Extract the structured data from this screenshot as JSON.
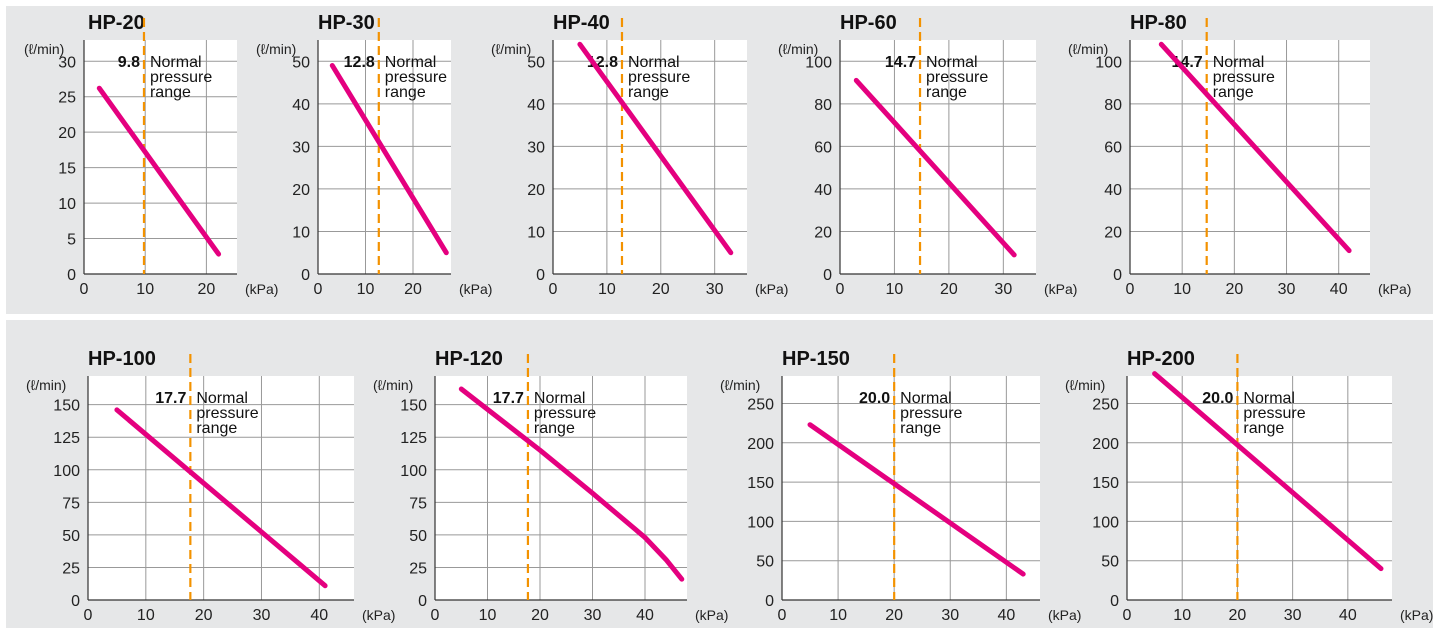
{
  "chart_data": [
    {
      "type": "line",
      "title": "HP-20",
      "ylabel": "(ℓ/min)",
      "xlabel": "(kPa)",
      "xticks": [
        0,
        10,
        20
      ],
      "yticks": [
        0,
        5,
        10,
        15,
        20,
        25,
        30
      ],
      "xlim": [
        0,
        25
      ],
      "ylim": [
        0,
        33
      ],
      "series": [
        {
          "x": [
            2.5,
            22
          ],
          "y": [
            26.2,
            2.8
          ]
        }
      ],
      "normal_pressure": 9.8,
      "normal_pressure_label": "9.8",
      "annotation": [
        "Normal",
        "pressure",
        "range"
      ]
    },
    {
      "type": "line",
      "title": "HP-30",
      "ylabel": "(ℓ/min)",
      "xlabel": "(kPa)",
      "xticks": [
        0,
        10,
        20
      ],
      "yticks": [
        0,
        10,
        20,
        30,
        40,
        50
      ],
      "xlim": [
        0,
        28
      ],
      "ylim": [
        0,
        55
      ],
      "series": [
        {
          "x": [
            3,
            27
          ],
          "y": [
            49,
            5
          ]
        }
      ],
      "normal_pressure": 12.8,
      "normal_pressure_label": "12.8",
      "annotation": [
        "Normal",
        "pressure",
        "range"
      ]
    },
    {
      "type": "line",
      "title": "HP-40",
      "ylabel": "(ℓ/min)",
      "xlabel": "(kPa)",
      "xticks": [
        0,
        10,
        20,
        30
      ],
      "yticks": [
        0,
        10,
        20,
        30,
        40,
        50
      ],
      "xlim": [
        0,
        36
      ],
      "ylim": [
        0,
        55
      ],
      "series": [
        {
          "x": [
            5,
            33
          ],
          "y": [
            54,
            5
          ]
        }
      ],
      "normal_pressure": 12.8,
      "normal_pressure_label": "12.8",
      "annotation": [
        "Normal",
        "pressure",
        "range"
      ]
    },
    {
      "type": "line",
      "title": "HP-60",
      "ylabel": "(ℓ/min)",
      "xlabel": "(kPa)",
      "xticks": [
        0,
        10,
        20,
        30
      ],
      "yticks": [
        0,
        20,
        40,
        60,
        80,
        100
      ],
      "xlim": [
        0,
        36
      ],
      "ylim": [
        0,
        110
      ],
      "series": [
        {
          "x": [
            3,
            32
          ],
          "y": [
            91,
            9
          ]
        }
      ],
      "normal_pressure": 14.7,
      "normal_pressure_label": "14.7",
      "annotation": [
        "Normal",
        "pressure",
        "range"
      ]
    },
    {
      "type": "line",
      "title": "HP-80",
      "ylabel": "(ℓ/min)",
      "xlabel": "(kPa)",
      "xticks": [
        0,
        10,
        20,
        30,
        40
      ],
      "yticks": [
        0,
        20,
        40,
        60,
        80,
        100
      ],
      "xlim": [
        0,
        46
      ],
      "ylim": [
        0,
        110
      ],
      "series": [
        {
          "x": [
            6,
            42
          ],
          "y": [
            108,
            11
          ]
        }
      ],
      "normal_pressure": 14.7,
      "normal_pressure_label": "14.7",
      "annotation": [
        "Normal",
        "pressure",
        "range"
      ]
    },
    {
      "type": "line",
      "title": "HP-100",
      "ylabel": "(ℓ/min)",
      "xlabel": "(kPa)",
      "xticks": [
        0,
        10,
        20,
        30,
        40
      ],
      "yticks": [
        0,
        25,
        50,
        75,
        100,
        125,
        150
      ],
      "xlim": [
        0,
        46
      ],
      "ylim": [
        0,
        172
      ],
      "series": [
        {
          "x": [
            5,
            41
          ],
          "y": [
            146,
            11
          ]
        }
      ],
      "normal_pressure": 17.7,
      "normal_pressure_label": "17.7",
      "annotation": [
        "Normal",
        "pressure",
        "range"
      ]
    },
    {
      "type": "line",
      "title": "HP-120",
      "ylabel": "(ℓ/min)",
      "xlabel": "(kPa)",
      "xticks": [
        0,
        10,
        20,
        30,
        40
      ],
      "yticks": [
        0,
        25,
        50,
        75,
        100,
        125,
        150
      ],
      "xlim": [
        0,
        48
      ],
      "ylim": [
        0,
        172
      ],
      "series": [
        {
          "x": [
            5,
            20,
            30,
            40,
            44,
            47
          ],
          "y": [
            162,
            115,
            82,
            48,
            31,
            16
          ]
        }
      ],
      "normal_pressure": 17.7,
      "normal_pressure_label": "17.7",
      "annotation": [
        "Normal",
        "pressure",
        "range"
      ]
    },
    {
      "type": "line",
      "title": "HP-150",
      "ylabel": "(ℓ/min)",
      "xlabel": "(kPa)",
      "xticks": [
        0,
        10,
        20,
        30,
        40
      ],
      "yticks": [
        0,
        50,
        100,
        150,
        200,
        250
      ],
      "xlim": [
        0,
        46
      ],
      "ylim": [
        0,
        285
      ],
      "series": [
        {
          "x": [
            5,
            43
          ],
          "y": [
            223,
            33
          ]
        }
      ],
      "normal_pressure": 20.0,
      "normal_pressure_label": "20.0",
      "annotation": [
        "Normal",
        "pressure",
        "range"
      ]
    },
    {
      "type": "line",
      "title": "HP-200",
      "ylabel": "(ℓ/min)",
      "xlabel": "(kPa)",
      "xticks": [
        0,
        10,
        20,
        30,
        40
      ],
      "yticks": [
        0,
        50,
        100,
        150,
        200,
        250
      ],
      "xlim": [
        0,
        48
      ],
      "ylim": [
        0,
        285
      ],
      "series": [
        {
          "x": [
            5,
            46
          ],
          "y": [
            288,
            40
          ]
        }
      ],
      "normal_pressure": 20.0,
      "normal_pressure_label": "20.0",
      "annotation": [
        "Normal",
        "pressure",
        "range"
      ]
    }
  ],
  "colors": {
    "curve": "#e4007f",
    "normal_line": "#f39200",
    "grid": "#999999",
    "band": "#e6e7e8",
    "plot": "#ffffff"
  }
}
